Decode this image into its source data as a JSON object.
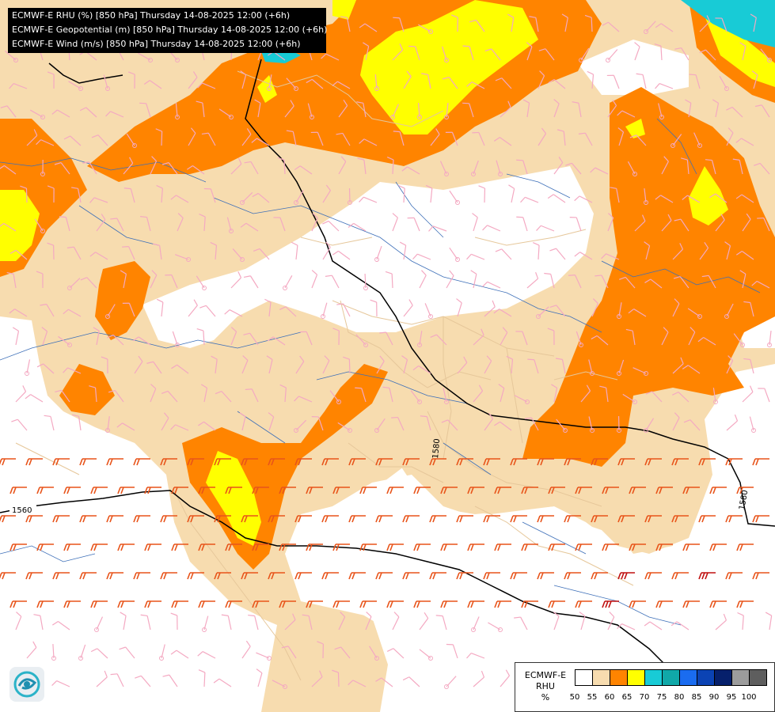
{
  "title_lines": [
    "ECMWF-E RHU (%) [850 hPa] Thursday 14-08-2025 12:00 (+6h)",
    "ECMWF-E Geopotential (m) [850 hPa] Thursday 14-08-2025 12:00 (+6h)",
    "ECMWF-E Wind (m/s) [850 hPa] Thursday 14-08-2025 12:00 (+6h)"
  ],
  "legend": {
    "name_lines": [
      "ECMWF-E",
      "RHU",
      "%"
    ],
    "ticks": [
      "50",
      "55",
      "60",
      "65",
      "70",
      "75",
      "80",
      "85",
      "90",
      "95",
      "100"
    ],
    "colors": [
      "#ffffff",
      "#f7dcaf",
      "#ff8400",
      "#ffff00",
      "#18cbd6",
      "#10a8a8",
      "#1a6cf0",
      "#0b43b4",
      "#06206c",
      "#9c9c9c",
      "#5e5e5e"
    ]
  },
  "contour_labels": [
    "1560",
    "1580",
    "1580"
  ],
  "colors": {
    "rhu_55": "#f7dcaf",
    "rhu_60": "#ff8400",
    "rhu_65": "#ffff00",
    "rhu_70": "#18cbd6",
    "border": "#e6c79a",
    "river": "#3d6fb8",
    "wind_light": "#f4a9c2",
    "wind_mid": "#e8541a",
    "wind_strong": "#c01010",
    "contour": "#000000"
  },
  "icons": [
    "logo-icon"
  ]
}
